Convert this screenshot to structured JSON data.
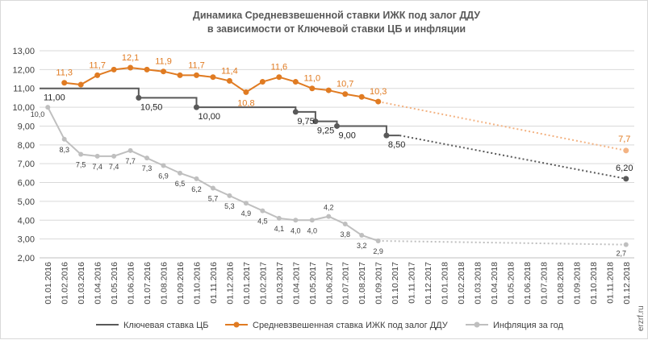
{
  "chart_data": {
    "type": "line",
    "title_lines": [
      "Динамика Средневзвешенной ставки ИЖК под залог ДДУ",
      "в зависимости от Ключевой ставки ЦБ и инфляции"
    ],
    "xlabel": "",
    "ylabel": "",
    "ylim": [
      2.0,
      13.0
    ],
    "yticks": [
      "2,00",
      "3,00",
      "4,00",
      "5,00",
      "6,00",
      "7,00",
      "8,00",
      "9,00",
      "10,00",
      "11,00",
      "12,00",
      "13,00"
    ],
    "categories": [
      "01.01.2016",
      "01.02.2016",
      "01.03.2016",
      "01.04.2016",
      "01.05.2016",
      "01.06.2016",
      "01.07.2016",
      "01.08.2016",
      "01.09.2016",
      "01.10.2016",
      "01.11.2016",
      "01.12.2016",
      "01.01.2017",
      "01.02.2017",
      "01.03.2017",
      "01.04.2017",
      "01.05.2017",
      "01.06.2017",
      "01.07.2017",
      "01.08.2017",
      "01.09.2017",
      "01.10.2017",
      "01.11.2017",
      "01.12.2017",
      "01.01.2018",
      "01.02.2018",
      "01.03.2018",
      "01.04.2018",
      "01.05.2018",
      "01.06.2018",
      "01.07.2018",
      "01.08.2018",
      "01.09.2018",
      "01.10.2018",
      "01.11.2018",
      "01.12.2018"
    ],
    "series": [
      {
        "name": "Ключевая ставка ЦБ",
        "color": "#595959",
        "style": "step",
        "steps": [
          {
            "from": 0,
            "to": 5.5,
            "value": 11.0
          },
          {
            "from": 5.5,
            "to": 9.0,
            "value": 10.5
          },
          {
            "from": 9.0,
            "to": 15.0,
            "value": 10.0
          },
          {
            "from": 15.0,
            "to": 16.2,
            "value": 9.75
          },
          {
            "from": 16.2,
            "to": 17.5,
            "value": 9.25
          },
          {
            "from": 17.5,
            "to": 20.5,
            "value": 9.0
          },
          {
            "from": 20.5,
            "to": 21.3,
            "value": 8.5
          }
        ],
        "markers": [
          {
            "x": 5.5,
            "value": 10.5
          },
          {
            "x": 9.0,
            "value": 10.0
          },
          {
            "x": 15.0,
            "value": 9.75
          },
          {
            "x": 16.2,
            "value": 9.25
          },
          {
            "x": 17.5,
            "value": 9.0
          },
          {
            "x": 20.5,
            "value": 8.5
          }
        ],
        "labels": [
          {
            "x": 0.0,
            "value": 11.0,
            "text": "11,00"
          },
          {
            "x": 5.5,
            "value": 10.5,
            "text": "10,50"
          },
          {
            "x": 9.0,
            "value": 10.0,
            "text": "10,00"
          },
          {
            "x": 15.0,
            "value": 9.75,
            "text": "9,75"
          },
          {
            "x": 16.2,
            "value": 9.25,
            "text": "9,25"
          },
          {
            "x": 17.5,
            "value": 9.0,
            "text": "9,00"
          },
          {
            "x": 20.5,
            "value": 8.5,
            "text": "8,50"
          }
        ],
        "forecast": {
          "from_x": 21.3,
          "from_value": 8.5,
          "to_x": 35.0,
          "to_value": 6.2,
          "label": "6,20"
        }
      },
      {
        "name": "Средневзвешенная ставка ИЖК под залог ДДУ",
        "color": "#e07b22",
        "style": "line",
        "x": [
          1,
          2,
          3,
          4,
          5,
          6,
          7,
          8,
          9,
          10,
          11,
          12,
          13,
          14,
          15,
          16,
          17,
          18,
          19,
          20
        ],
        "values": [
          11.3,
          11.2,
          11.7,
          12.0,
          12.1,
          12.0,
          11.9,
          11.7,
          11.7,
          11.6,
          11.4,
          10.8,
          11.35,
          11.6,
          11.35,
          11.0,
          10.9,
          10.7,
          10.55,
          10.3
        ],
        "labels": [
          {
            "x": 1,
            "value": 11.3,
            "text": "11,3"
          },
          {
            "x": 3,
            "value": 11.7,
            "text": "11,7"
          },
          {
            "x": 5,
            "value": 12.1,
            "text": "12,1"
          },
          {
            "x": 7,
            "value": 11.9,
            "text": "11,9"
          },
          {
            "x": 9,
            "value": 11.7,
            "text": "11,7"
          },
          {
            "x": 11,
            "value": 11.4,
            "text": "11,4"
          },
          {
            "x": 12,
            "value": 10.8,
            "text": "10,8"
          },
          {
            "x": 14,
            "value": 11.6,
            "text": "11,6"
          },
          {
            "x": 16,
            "value": 11.0,
            "text": "11,0"
          },
          {
            "x": 18,
            "value": 10.7,
            "text": "10,7"
          },
          {
            "x": 20,
            "value": 10.3,
            "text": "10,3"
          }
        ],
        "forecast": {
          "from_x": 20,
          "from_value": 10.3,
          "to_x": 35.0,
          "to_value": 7.7,
          "label": "7,7",
          "color": "#f3b383"
        }
      },
      {
        "name": "Инфляция за год",
        "color": "#bfbfbf",
        "style": "line",
        "x": [
          0,
          1,
          2,
          3,
          4,
          5,
          6,
          7,
          8,
          9,
          10,
          11,
          12,
          13,
          14,
          15,
          16,
          17,
          18,
          19,
          20
        ],
        "values": [
          10.0,
          8.3,
          7.5,
          7.4,
          7.4,
          7.7,
          7.3,
          6.9,
          6.5,
          6.2,
          5.7,
          5.3,
          4.9,
          4.5,
          4.1,
          4.0,
          4.0,
          4.2,
          3.8,
          3.2,
          2.9
        ],
        "labels": [
          {
            "x": 0,
            "value": 10.0,
            "text": "10,0"
          },
          {
            "x": 1,
            "value": 8.3,
            "text": "8,3"
          },
          {
            "x": 2,
            "value": 7.5,
            "text": "7,5"
          },
          {
            "x": 3,
            "value": 7.4,
            "text": "7,4"
          },
          {
            "x": 4,
            "value": 7.4,
            "text": "7,4"
          },
          {
            "x": 5,
            "value": 7.7,
            "text": "7,7"
          },
          {
            "x": 6,
            "value": 7.3,
            "text": "7,3"
          },
          {
            "x": 7,
            "value": 6.9,
            "text": "6,9"
          },
          {
            "x": 8,
            "value": 6.5,
            "text": "6,5"
          },
          {
            "x": 9,
            "value": 6.2,
            "text": "6,2"
          },
          {
            "x": 10,
            "value": 5.7,
            "text": "5,7"
          },
          {
            "x": 11,
            "value": 5.3,
            "text": "5,3"
          },
          {
            "x": 12,
            "value": 4.9,
            "text": "4,9"
          },
          {
            "x": 13,
            "value": 4.5,
            "text": "4,5"
          },
          {
            "x": 14,
            "value": 4.1,
            "text": "4,1"
          },
          {
            "x": 15,
            "value": 4.0,
            "text": "4,0"
          },
          {
            "x": 16,
            "value": 4.0,
            "text": "4,0"
          },
          {
            "x": 17,
            "value": 4.2,
            "text": "4,2"
          },
          {
            "x": 18,
            "value": 3.8,
            "text": "3,8"
          },
          {
            "x": 19,
            "value": 3.2,
            "text": "3,2"
          },
          {
            "x": 20,
            "value": 2.9,
            "text": "2,9"
          }
        ],
        "forecast": {
          "from_x": 20,
          "from_value": 2.9,
          "to_x": 35.0,
          "to_value": 2.7,
          "label": "2,7"
        }
      }
    ],
    "legend_position": "bottom"
  },
  "watermark": "erzrf.ru"
}
